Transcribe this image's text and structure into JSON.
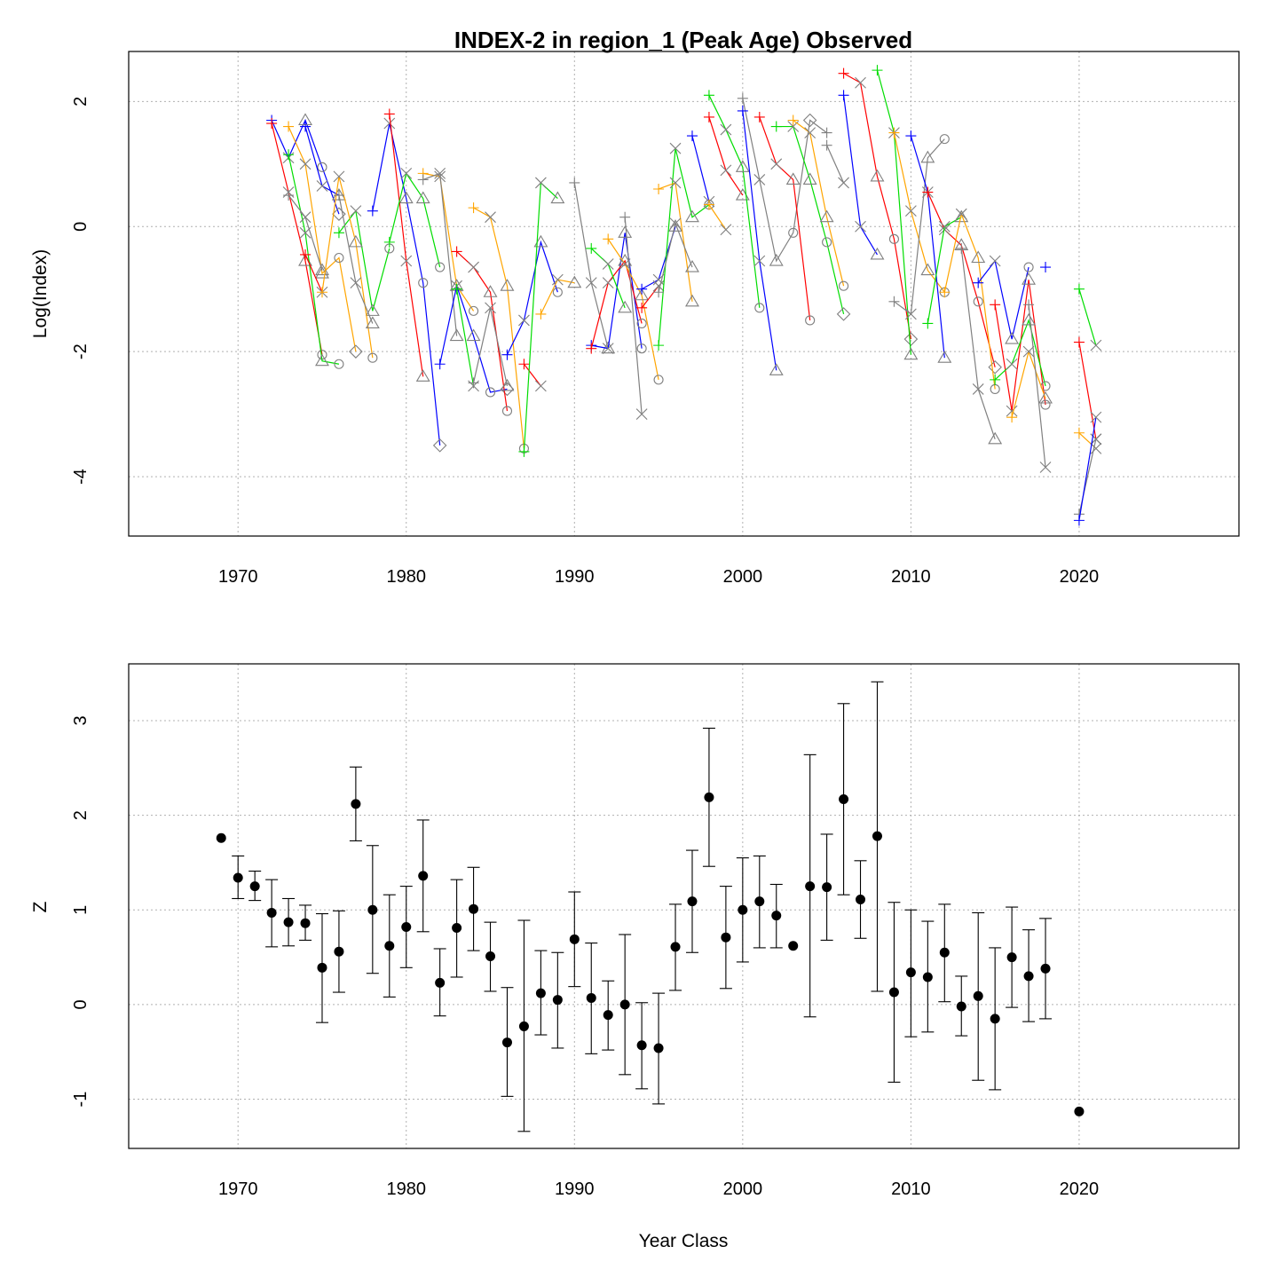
{
  "colors": {
    "series": [
      "#0000ff",
      "#ff0000",
      "#00dd00",
      "#ffa500",
      "#808080"
    ],
    "axis": "#000000",
    "grid": "#b0b0b0",
    "points": "#000000"
  },
  "chart_data": [
    {
      "id": "top",
      "type": "line",
      "title": "INDEX-2 in region_1 (Peak Age) Observed",
      "xlabel": "",
      "ylabel": "Log(Index)",
      "xlim": [
        1963.5,
        2029.5
      ],
      "ylim": [
        -4.95,
        2.8
      ],
      "xticks": [
        1970,
        1980,
        1990,
        2000,
        2010,
        2020
      ],
      "yticks": [
        -4,
        -2,
        0,
        2
      ],
      "ytick_labels": [
        "-4",
        "-2",
        "0",
        "2"
      ],
      "grid": true,
      "cohort_note": "Each year class is followed across successive ages; age marker symbols: + , × , △ , ○ , ◇",
      "cohorts": [
        {
          "start": 1972,
          "values": [
            1.7,
            1.1,
            1.7,
            0.95,
            0.2
          ]
        },
        {
          "start": 1972,
          "values": [
            1.65,
            0.55,
            -0.55,
            -2.05
          ]
        },
        {
          "start": 1973,
          "values": [
            1.15,
            -0.1,
            -2.15,
            -2.2
          ]
        },
        {
          "start": 1973,
          "values": [
            1.6,
            1.0,
            -0.75,
            -0.5,
            -2.0
          ]
        },
        {
          "start": 1973,
          "values": [
            0.5,
            0.15,
            -0.7
          ]
        },
        {
          "start": 1974,
          "values": [
            1.6,
            0.65,
            0.5
          ]
        },
        {
          "start": 1974,
          "values": [
            -0.45,
            -1.05
          ]
        },
        {
          "start": 1976,
          "values": [
            -0.1,
            0.25,
            -1.35,
            -0.35
          ]
        },
        {
          "start": 1975,
          "values": [
            -1.05,
            0.8,
            -0.25,
            -2.1
          ]
        },
        {
          "start": 1976,
          "values": [
            0.5,
            -0.9,
            -1.55
          ]
        },
        {
          "start": 1978,
          "values": [
            0.25,
            1.65,
            0.45,
            -0.9,
            -3.5
          ]
        },
        {
          "start": 1979,
          "values": [
            1.8,
            -0.55,
            -2.4
          ]
        },
        {
          "start": 1979,
          "values": [
            -0.25,
            0.85,
            0.45,
            -0.65
          ]
        },
        {
          "start": 1981,
          "values": [
            0.85,
            0.8,
            -0.95,
            -1.35
          ]
        },
        {
          "start": 1981,
          "values": [
            0.75,
            0.85,
            -1.75
          ]
        },
        {
          "start": 1982,
          "values": [
            -2.2,
            -0.95,
            -1.75,
            -2.65,
            -2.6
          ]
        },
        {
          "start": 1983,
          "values": [
            -0.4,
            -0.65,
            -1.05,
            -2.95
          ]
        },
        {
          "start": 1983,
          "values": [
            -1.0,
            -2.55
          ]
        },
        {
          "start": 1984,
          "values": [
            0.3,
            0.15,
            -0.95,
            -3.55
          ]
        },
        {
          "start": 1984,
          "values": [
            -2.5,
            -1.3,
            -2.55
          ]
        },
        {
          "start": 1986,
          "values": [
            -2.05,
            -1.5,
            -0.25,
            -1.05
          ]
        },
        {
          "start": 1987,
          "values": [
            -2.2,
            -2.55
          ]
        },
        {
          "start": 1987,
          "values": [
            -3.6,
            0.7,
            0.45
          ]
        },
        {
          "start": 1988,
          "values": [
            -1.4,
            -0.85,
            -0.9
          ]
        },
        {
          "start": 1990,
          "values": [
            0.7,
            -0.9,
            -1.95
          ]
        },
        {
          "start": 1991,
          "values": [
            -1.9,
            -1.95,
            -0.1,
            -1.95
          ]
        },
        {
          "start": 1991,
          "values": [
            -1.95,
            -0.9,
            -0.55,
            -1.55
          ]
        },
        {
          "start": 1991,
          "values": [
            -0.35,
            -0.6,
            -1.3
          ]
        },
        {
          "start": 1992,
          "values": [
            -0.2,
            -0.6,
            -1.1,
            -2.45
          ]
        },
        {
          "start": 1993,
          "values": [
            0.15,
            -3.0
          ]
        },
        {
          "start": 1994,
          "values": [
            -1.0,
            -0.85,
            0.0
          ]
        },
        {
          "start": 1994,
          "values": [
            -1.3,
            -0.95
          ]
        },
        {
          "start": 1995,
          "values": [
            -1.9,
            1.25,
            0.15,
            0.35
          ]
        },
        {
          "start": 1995,
          "values": [
            0.6,
            0.7,
            -1.2
          ]
        },
        {
          "start": 1995,
          "values": [
            -1.05,
            0.05,
            -0.65
          ]
        },
        {
          "start": 1997,
          "values": [
            1.45,
            0.4
          ]
        },
        {
          "start": 1998,
          "values": [
            1.75,
            0.9,
            0.5
          ]
        },
        {
          "start": 1998,
          "values": [
            2.1,
            1.55,
            0.95,
            -1.3
          ]
        },
        {
          "start": 1998,
          "values": [
            0.35,
            -0.05
          ]
        },
        {
          "start": 2000,
          "values": [
            2.05,
            0.75,
            -0.55,
            -0.1,
            1.7,
            1.5
          ]
        },
        {
          "start": 2000,
          "values": [
            1.85,
            -0.55,
            -2.3
          ]
        },
        {
          "start": 2001,
          "values": [
            1.75,
            1.0,
            0.75,
            -1.5
          ]
        },
        {
          "start": 2002,
          "values": [
            1.6,
            1.6,
            0.75,
            -0.25,
            -1.4
          ]
        },
        {
          "start": 2003,
          "values": [
            1.7,
            1.5,
            0.15,
            -0.95
          ]
        },
        {
          "start": 2005,
          "values": [
            1.3,
            0.7
          ]
        },
        {
          "start": 2006,
          "values": [
            2.1,
            0.0,
            -0.45
          ]
        },
        {
          "start": 2006,
          "values": [
            2.45,
            2.3,
            0.8,
            -0.2,
            -1.8
          ]
        },
        {
          "start": 2008,
          "values": [
            2.5,
            1.5,
            -2.05
          ]
        },
        {
          "start": 2009,
          "values": [
            1.5,
            0.25,
            -0.7,
            -1.05
          ]
        },
        {
          "start": 2009,
          "values": [
            -1.2,
            -1.4,
            1.1,
            1.4
          ]
        },
        {
          "start": 2010,
          "values": [
            1.45,
            0.55,
            -2.1
          ]
        },
        {
          "start": 2011,
          "values": [
            0.55,
            -0.05,
            -0.3,
            -1.2,
            -2.25
          ]
        },
        {
          "start": 2011,
          "values": [
            -1.55,
            0.0,
            0.15
          ]
        },
        {
          "start": 2012,
          "values": [
            -1.05,
            0.2,
            -0.5,
            -2.6
          ]
        },
        {
          "start": 2013,
          "values": [
            -0.35,
            -2.6,
            -3.4
          ]
        },
        {
          "start": 2014,
          "values": [
            -0.9,
            -0.55,
            -1.8,
            -0.65
          ]
        },
        {
          "start": 2015,
          "values": [
            -1.25,
            -2.95,
            -0.85,
            -2.85
          ]
        },
        {
          "start": 2015,
          "values": [
            -2.45,
            -2.2,
            -1.5,
            -2.55
          ]
        },
        {
          "start": 2016,
          "values": [
            -3.05,
            -2.0,
            -2.75
          ]
        },
        {
          "start": 2017,
          "values": [
            -1.25,
            -3.85
          ]
        },
        {
          "start": 2018,
          "values": [
            -0.65
          ]
        },
        {
          "start": 2020,
          "values": [
            -1.85,
            -3.4
          ]
        },
        {
          "start": 2020,
          "values": [
            -1.0,
            -1.9
          ]
        },
        {
          "start": 2020,
          "values": [
            -3.3,
            -3.55
          ]
        },
        {
          "start": 2020,
          "values": [
            -4.6,
            -3.4
          ]
        },
        {
          "start": 2020,
          "values": [
            -4.7,
            -3.05
          ]
        }
      ]
    },
    {
      "id": "bottom",
      "type": "scatter",
      "title": "",
      "xlabel": "Year Class",
      "ylabel": "Z",
      "xlim": [
        1963.5,
        2029.5
      ],
      "ylim": [
        -1.52,
        3.6
      ],
      "xticks": [
        1970,
        1980,
        1990,
        2000,
        2010,
        2020
      ],
      "yticks": [
        -1,
        0,
        1,
        2,
        3
      ],
      "ytick_labels": [
        "-1",
        "0",
        "1",
        "2",
        "3"
      ],
      "grid": true,
      "points": [
        {
          "x": 1969,
          "y": 1.76
        },
        {
          "x": 1970,
          "y": 1.34,
          "lo": 1.12,
          "hi": 1.57
        },
        {
          "x": 1971,
          "y": 1.25,
          "lo": 1.1,
          "hi": 1.41
        },
        {
          "x": 1972,
          "y": 0.97,
          "lo": 0.61,
          "hi": 1.32
        },
        {
          "x": 1973,
          "y": 0.87,
          "lo": 0.62,
          "hi": 1.12
        },
        {
          "x": 1974,
          "y": 0.86,
          "lo": 0.68,
          "hi": 1.05
        },
        {
          "x": 1975,
          "y": 0.39,
          "lo": -0.19,
          "hi": 0.96
        },
        {
          "x": 1976,
          "y": 0.56,
          "lo": 0.13,
          "hi": 0.99
        },
        {
          "x": 1977,
          "y": 2.12,
          "lo": 1.73,
          "hi": 2.51
        },
        {
          "x": 1978,
          "y": 1.0,
          "lo": 0.33,
          "hi": 1.68
        },
        {
          "x": 1979,
          "y": 0.62,
          "lo": 0.08,
          "hi": 1.16
        },
        {
          "x": 1980,
          "y": 0.82,
          "lo": 0.39,
          "hi": 1.25
        },
        {
          "x": 1981,
          "y": 1.36,
          "lo": 0.77,
          "hi": 1.95
        },
        {
          "x": 1982,
          "y": 0.23,
          "lo": -0.12,
          "hi": 0.59
        },
        {
          "x": 1983,
          "y": 0.81,
          "lo": 0.29,
          "hi": 1.32
        },
        {
          "x": 1984,
          "y": 1.01,
          "lo": 0.57,
          "hi": 1.45
        },
        {
          "x": 1985,
          "y": 0.51,
          "lo": 0.14,
          "hi": 0.87
        },
        {
          "x": 1986,
          "y": -0.4,
          "lo": -0.97,
          "hi": 0.18
        },
        {
          "x": 1987,
          "y": -0.23,
          "lo": -1.34,
          "hi": 0.89
        },
        {
          "x": 1988,
          "y": 0.12,
          "lo": -0.32,
          "hi": 0.57
        },
        {
          "x": 1989,
          "y": 0.05,
          "lo": -0.46,
          "hi": 0.55
        },
        {
          "x": 1990,
          "y": 0.69,
          "lo": 0.19,
          "hi": 1.19
        },
        {
          "x": 1991,
          "y": 0.07,
          "lo": -0.52,
          "hi": 0.65
        },
        {
          "x": 1992,
          "y": -0.11,
          "lo": -0.48,
          "hi": 0.25
        },
        {
          "x": 1993,
          "y": 0.0,
          "lo": -0.74,
          "hi": 0.74
        },
        {
          "x": 1994,
          "y": -0.43,
          "lo": -0.89,
          "hi": 0.02
        },
        {
          "x": 1995,
          "y": -0.46,
          "lo": -1.05,
          "hi": 0.12
        },
        {
          "x": 1996,
          "y": 0.61,
          "lo": 0.15,
          "hi": 1.06
        },
        {
          "x": 1997,
          "y": 1.09,
          "lo": 0.55,
          "hi": 1.63
        },
        {
          "x": 1998,
          "y": 2.19,
          "lo": 1.46,
          "hi": 2.92
        },
        {
          "x": 1999,
          "y": 0.71,
          "lo": 0.17,
          "hi": 1.25
        },
        {
          "x": 2000,
          "y": 1.0,
          "lo": 0.45,
          "hi": 1.55
        },
        {
          "x": 2001,
          "y": 1.09,
          "lo": 0.6,
          "hi": 1.57
        },
        {
          "x": 2002,
          "y": 0.94,
          "lo": 0.6,
          "hi": 1.27
        },
        {
          "x": 2003,
          "y": 0.62
        },
        {
          "x": 2004,
          "y": 1.25,
          "lo": -0.13,
          "hi": 2.64
        },
        {
          "x": 2005,
          "y": 1.24,
          "lo": 0.68,
          "hi": 1.8
        },
        {
          "x": 2006,
          "y": 2.17,
          "lo": 1.16,
          "hi": 3.18
        },
        {
          "x": 2007,
          "y": 1.11,
          "lo": 0.7,
          "hi": 1.52
        },
        {
          "x": 2008,
          "y": 1.78,
          "lo": 0.14,
          "hi": 3.41
        },
        {
          "x": 2009,
          "y": 0.13,
          "lo": -0.82,
          "hi": 1.08
        },
        {
          "x": 2010,
          "y": 0.34,
          "lo": -0.34,
          "hi": 1.0
        },
        {
          "x": 2011,
          "y": 0.29,
          "lo": -0.29,
          "hi": 0.88
        },
        {
          "x": 2012,
          "y": 0.55,
          "lo": 0.03,
          "hi": 1.06
        },
        {
          "x": 2013,
          "y": -0.02,
          "lo": -0.33,
          "hi": 0.3
        },
        {
          "x": 2014,
          "y": 0.09,
          "lo": -0.8,
          "hi": 0.97
        },
        {
          "x": 2015,
          "y": -0.15,
          "lo": -0.9,
          "hi": 0.6
        },
        {
          "x": 2016,
          "y": 0.5,
          "lo": -0.03,
          "hi": 1.03
        },
        {
          "x": 2017,
          "y": 0.3,
          "lo": -0.18,
          "hi": 0.79
        },
        {
          "x": 2018,
          "y": 0.38,
          "lo": -0.15,
          "hi": 0.91
        },
        {
          "x": 2020,
          "y": -1.13
        }
      ]
    }
  ]
}
